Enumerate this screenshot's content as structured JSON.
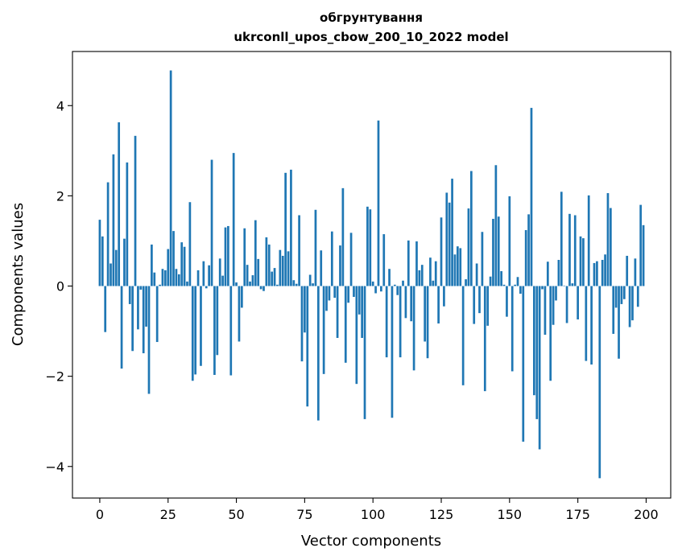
{
  "chart_data": {
    "type": "bar",
    "title_line1": "обгрунтування",
    "title_line2": "ukrconll_upos_cbow_200_10_2022 model",
    "xlabel": "Vector components",
    "ylabel": "Components values",
    "xlim": [
      -10,
      209
    ],
    "ylim": [
      -4.7,
      5.2
    ],
    "xticks": [
      0,
      25,
      50,
      75,
      100,
      125,
      150,
      175,
      200
    ],
    "yticks": [
      -4,
      -2,
      0,
      2,
      4
    ],
    "ytick_labels": [
      "−4",
      "−2",
      "0",
      "2",
      "4"
    ],
    "grid": false,
    "bar_color": "#1f77b4",
    "values": [
      1.47,
      1.1,
      -1.02,
      2.3,
      0.5,
      2.92,
      0.8,
      3.63,
      -1.83,
      1.05,
      2.74,
      -0.4,
      -1.44,
      3.33,
      -0.96,
      -0.08,
      -1.49,
      -0.9,
      -2.39,
      0.92,
      0.3,
      -1.24,
      0.03,
      0.38,
      0.35,
      0.82,
      4.78,
      1.22,
      0.38,
      0.26,
      0.97,
      0.87,
      0.1,
      1.86,
      -2.1,
      -1.96,
      0.35,
      -1.77,
      0.55,
      -0.05,
      0.46,
      2.8,
      -1.97,
      -1.53,
      0.61,
      0.23,
      1.3,
      1.33,
      -1.98,
      2.95,
      0.08,
      -1.23,
      -0.48,
      1.28,
      0.47,
      0.1,
      0.24,
      1.46,
      0.6,
      -0.07,
      -0.11,
      1.08,
      0.92,
      0.32,
      0.4,
      0.03,
      0.8,
      0.67,
      2.51,
      0.77,
      2.58,
      0.13,
      0.05,
      1.57,
      -1.67,
      -1.03,
      -2.67,
      0.25,
      0.06,
      1.69,
      -2.98,
      0.79,
      -1.95,
      -0.55,
      -0.32,
      1.21,
      -0.26,
      -1.15,
      0.9,
      2.17,
      -1.7,
      -0.37,
      1.18,
      -0.24,
      -2.17,
      -0.63,
      -1.15,
      -2.95,
      1.76,
      1.7,
      0.1,
      -0.16,
      3.67,
      -0.12,
      1.15,
      -1.58,
      0.38,
      -2.92,
      0.03,
      -0.2,
      -1.58,
      0.12,
      -0.71,
      1.01,
      -0.78,
      -1.87,
      0.99,
      0.35,
      0.47,
      -1.23,
      -1.6,
      0.63,
      0.12,
      0.55,
      -0.83,
      1.52,
      -0.45,
      2.07,
      1.85,
      2.38,
      0.7,
      0.88,
      0.84,
      -2.2,
      0.15,
      1.72,
      2.55,
      -0.84,
      0.5,
      -0.6,
      1.2,
      -2.33,
      -0.88,
      0.21,
      1.49,
      2.68,
      1.54,
      0.33,
      0.03,
      -0.68,
      1.99,
      -1.89,
      0.03,
      0.2,
      -0.17,
      -3.45,
      1.24,
      1.59,
      3.95,
      -2.42,
      -2.95,
      -3.62,
      -0.07,
      -1.08,
      0.54,
      -2.1,
      -0.86,
      -0.32,
      0.58,
      2.09,
      0.01,
      -0.82,
      1.6,
      0.06,
      1.57,
      -0.74,
      1.1,
      1.06,
      -1.66,
      2.01,
      -1.74,
      0.51,
      0.55,
      -4.26,
      0.58,
      0.7,
      2.06,
      1.73,
      -1.06,
      -0.48,
      -1.61,
      -0.4,
      -0.29,
      0.67,
      -0.91,
      -0.76,
      0.61,
      -0.46,
      1.8,
      1.35
    ]
  }
}
